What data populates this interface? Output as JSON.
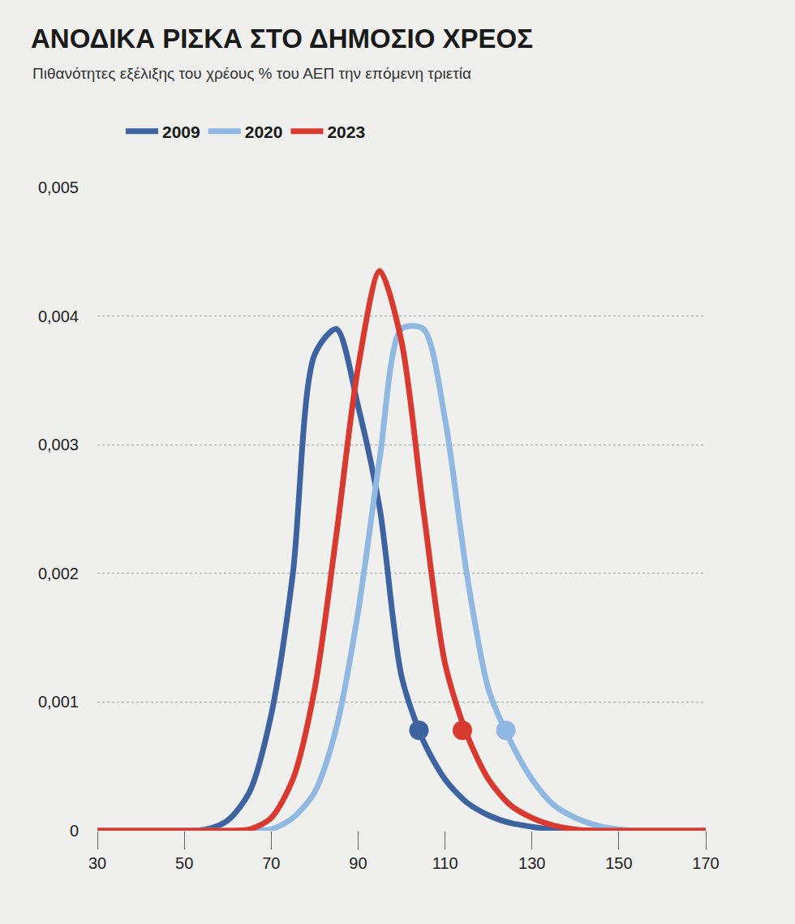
{
  "chart_data": {
    "type": "line",
    "title": "ΑΝΟΔΙΚΑ ΡΙΣΚΑ ΣΤΟ ΔΗΜΟΣΙΟ ΧΡΕΟΣ",
    "subtitle": "Πιθανότητες εξέλιξης του χρέους % του ΑΕΠ την επόμενη τριετία",
    "x": [
      30,
      35,
      40,
      45,
      50,
      55,
      60,
      65,
      70,
      75,
      80,
      85,
      90,
      95,
      100,
      105,
      110,
      115,
      120,
      125,
      130,
      135,
      140,
      145,
      150,
      155,
      160,
      165,
      170
    ],
    "series": [
      {
        "name": "2009",
        "color": "#3d64a0",
        "values": [
          0,
          0,
          0,
          0,
          0,
          1e-05,
          8e-05,
          0.0003,
          0.0009,
          0.002,
          0.0037,
          0.0039,
          0.0033,
          0.0025,
          0.0012,
          0.0007,
          0.0004,
          0.00022,
          0.00012,
          6e-05,
          3e-05,
          1e-05,
          0,
          0,
          0,
          0,
          0,
          0,
          0
        ],
        "points": [
          {
            "x": 104,
            "y": 0.00078
          }
        ]
      },
      {
        "name": "2020",
        "color": "#8fb8e3",
        "values": [
          0,
          0,
          0,
          0,
          0,
          0,
          0,
          0,
          1e-05,
          0.0001,
          0.0003,
          0.0008,
          0.0017,
          0.0029,
          0.0039,
          0.0039,
          0.0032,
          0.002,
          0.0011,
          0.0007,
          0.0004,
          0.0002,
          0.0001,
          4e-05,
          1e-05,
          0,
          0,
          0,
          0
        ],
        "points": [
          {
            "x": 124,
            "y": 0.00078
          }
        ]
      },
      {
        "name": "2023",
        "color": "#d93a2f",
        "values": [
          0,
          0,
          0,
          0,
          0,
          0,
          0,
          1e-05,
          0.0001,
          0.0004,
          0.0011,
          0.0023,
          0.0036,
          0.00435,
          0.0038,
          0.0025,
          0.0013,
          0.00075,
          0.0004,
          0.0002,
          0.0001,
          4e-05,
          1e-05,
          0,
          0,
          0,
          0,
          0,
          0
        ],
        "points": [
          {
            "x": 114,
            "y": 0.00078
          }
        ]
      }
    ],
    "xlim": [
      30,
      170
    ],
    "xticks": [
      30,
      50,
      70,
      90,
      110,
      130,
      150,
      170
    ],
    "ylim": [
      0,
      0.005
    ],
    "yticks": [
      0,
      {
        "value": 0.001,
        "label": "0,001"
      },
      {
        "value": 0.002,
        "label": "0,002"
      },
      {
        "value": 0.003,
        "label": "0,003"
      },
      {
        "value": 0.004,
        "label": "0,004"
      },
      {
        "value": 0.005,
        "label": "0,005"
      }
    ],
    "grid": true,
    "legend": "top-left",
    "line_style": "solid",
    "marker": "circle"
  }
}
